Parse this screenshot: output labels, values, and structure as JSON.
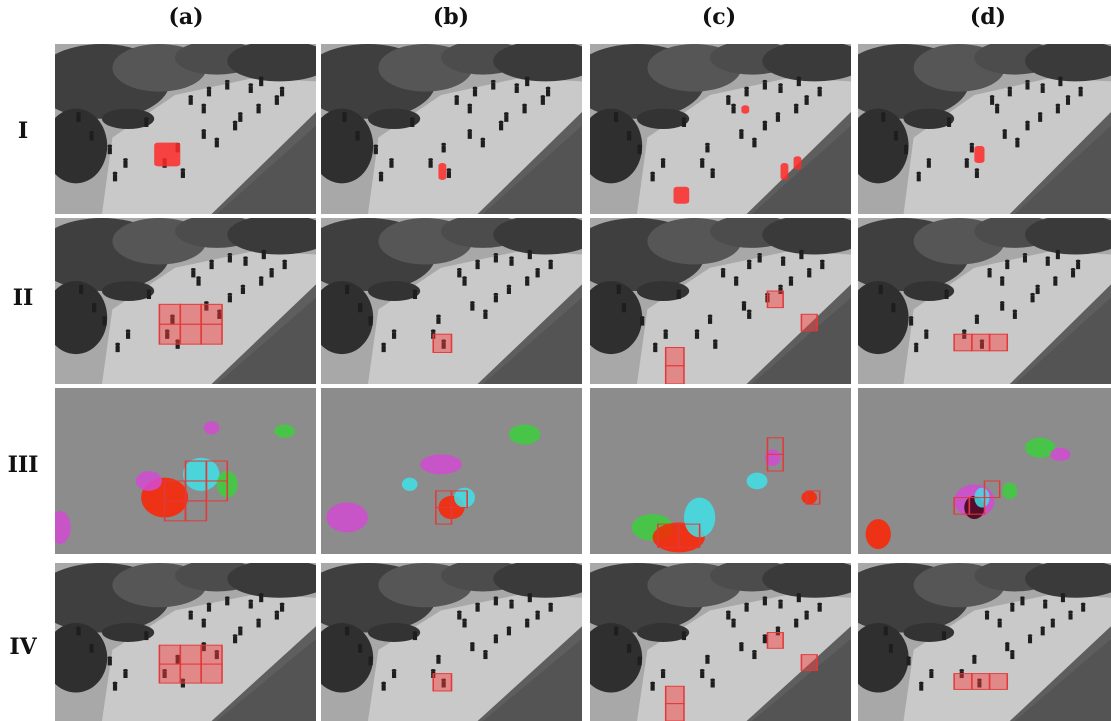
{
  "columns": [
    {
      "label": "(a)"
    },
    {
      "label": "(b)"
    },
    {
      "label": "(c)"
    },
    {
      "label": "(d)"
    }
  ],
  "rows": [
    {
      "label": "I",
      "kind": "scene"
    },
    {
      "label": "II",
      "kind": "scene"
    },
    {
      "label": "III",
      "kind": "optical-flow"
    },
    {
      "label": "IV",
      "kind": "scene"
    }
  ],
  "colors": {
    "highlight": "#ff2a2a",
    "box_stroke": "#e23a3a",
    "box_fill": "rgba(255,60,60,0.45)",
    "flow_bg": "#8c8c8c",
    "flow_magenta": "#d24bd2",
    "flow_cyan": "#3fe0e6",
    "flow_green": "#3ccf3c",
    "flow_red": "#ff2200"
  }
}
